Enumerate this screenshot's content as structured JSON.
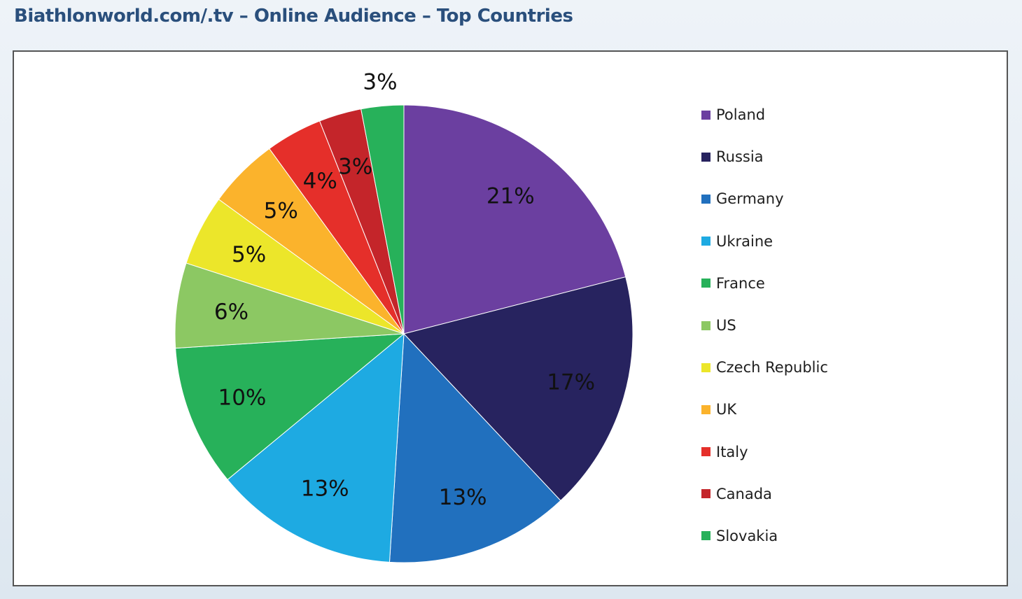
{
  "page": {
    "title": "Biathlonworld.com/.tv – Online Audience – Top Countries"
  },
  "chart_data": {
    "type": "pie",
    "title": "Biathlonworld.com/.tv – Online Audience – Top Countries",
    "legend_position": "right",
    "start_angle_deg": -90,
    "direction": "clockwise",
    "slices": [
      {
        "name": "Poland",
        "value": 21,
        "label": "21%",
        "color": "#6b3fa0",
        "label_color": "#111111"
      },
      {
        "name": "Russia",
        "value": 17,
        "label": "17%",
        "color": "#27235f",
        "label_color": "#111111"
      },
      {
        "name": "Germany",
        "value": 13,
        "label": "13%",
        "color": "#2170be",
        "label_color": "#111111"
      },
      {
        "name": "Ukraine",
        "value": 13,
        "label": "13%",
        "color": "#1eaae2",
        "label_color": "#111111"
      },
      {
        "name": "France",
        "value": 10,
        "label": "10%",
        "color": "#27b15a",
        "label_color": "#111111"
      },
      {
        "name": "US",
        "value": 6,
        "label": "6%",
        "color": "#8cc863",
        "label_color": "#111111"
      },
      {
        "name": "Czech Republic",
        "value": 5,
        "label": "5%",
        "color": "#ece62a",
        "label_color": "#111111"
      },
      {
        "name": "UK",
        "value": 5,
        "label": "5%",
        "color": "#fbb32c",
        "label_color": "#111111"
      },
      {
        "name": "Italy",
        "value": 4,
        "label": "4%",
        "color": "#e52f2a",
        "label_color": "#111111"
      },
      {
        "name": "Canada",
        "value": 3,
        "label": "3%",
        "color": "#c4252a",
        "label_color": "#111111"
      },
      {
        "name": "Slovakia",
        "value": 3,
        "label": "3%",
        "color": "#27b15a",
        "label_color": "#111111"
      }
    ]
  }
}
